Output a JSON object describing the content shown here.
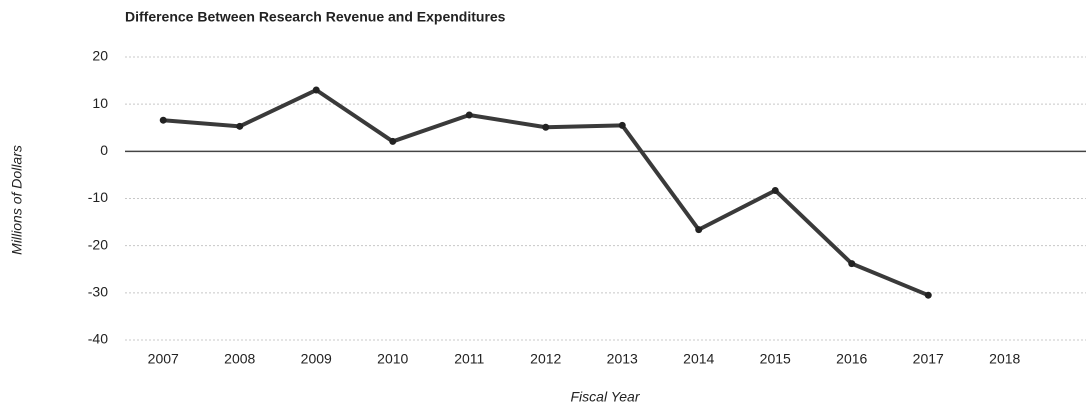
{
  "chart_data": {
    "type": "line",
    "title": "Difference Between Research Revenue and Expenditures",
    "x_label": "Fiscal Year",
    "y_label": "Millions of Dollars",
    "categories": [
      "2007",
      "2008",
      "2009",
      "2010",
      "2011",
      "2012",
      "2013",
      "2014",
      "2015",
      "2016",
      "2017",
      "2018"
    ],
    "values": [
      6.6,
      5.3,
      13,
      2.1,
      7.7,
      5.1,
      5.5,
      -16.6,
      -8.3,
      -23.8,
      -30.5,
      null
    ],
    "color": "#3a3a3a",
    "ylim": [
      -40,
      20
    ],
    "yticks": [
      -40,
      -30,
      -20,
      -10,
      0,
      10,
      20
    ],
    "grid": true
  }
}
